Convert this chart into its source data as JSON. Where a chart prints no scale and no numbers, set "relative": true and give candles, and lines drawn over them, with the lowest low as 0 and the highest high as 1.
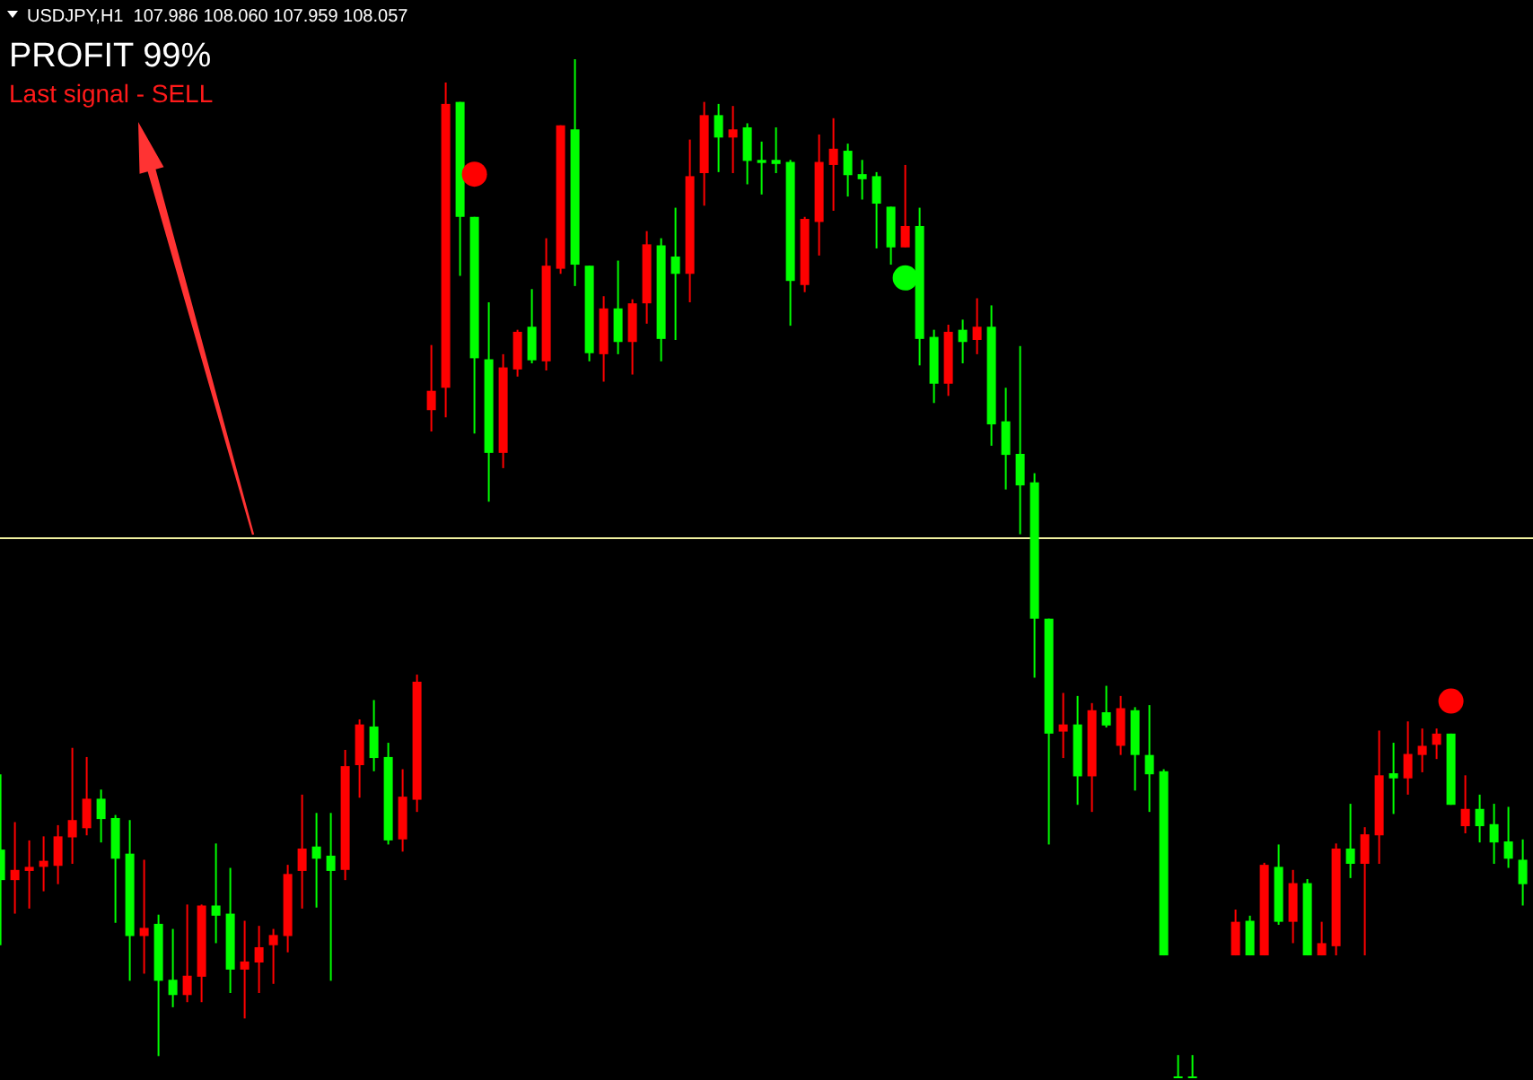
{
  "chart_data": {
    "type": "candlestick",
    "title": "USDJPY,H1  107.986 108.060 107.959 108.057",
    "annotations": [
      "PROFIT 99%",
      "Last signal - SELL"
    ],
    "relative": true,
    "categories": [
      null,
      null,
      null,
      null,
      null,
      null,
      null,
      null,
      null,
      null,
      null,
      null,
      null,
      null,
      null,
      null,
      null,
      null,
      null,
      null,
      null,
      null,
      null,
      null,
      null,
      null,
      null,
      null,
      null,
      null,
      null,
      null,
      null,
      null,
      null,
      null,
      null,
      null,
      null,
      null,
      null,
      null,
      null,
      null,
      null,
      null,
      null,
      null,
      null,
      null,
      null,
      null,
      null,
      null,
      null,
      null,
      null,
      null,
      null,
      null,
      null,
      null,
      null,
      null,
      null,
      null,
      null,
      null,
      null,
      null,
      null,
      null,
      null,
      null,
      null,
      null,
      null,
      null,
      null,
      null,
      null,
      null,
      null,
      null,
      null,
      null,
      null,
      null,
      null,
      null,
      null,
      null,
      null,
      null,
      null,
      null,
      null,
      null,
      null,
      null,
      null,
      null,
      null,
      null,
      null,
      null,
      null
    ],
    "ohlc": [
      [
        0.223,
        0.297,
        0.129,
        0.193
      ],
      [
        0.193,
        0.25,
        0.16,
        0.203
      ],
      [
        0.202,
        0.232,
        0.165,
        0.206
      ],
      [
        0.206,
        0.236,
        0.182,
        0.212
      ],
      [
        0.207,
        0.247,
        0.189,
        0.236
      ],
      [
        0.235,
        0.323,
        0.209,
        0.252
      ],
      [
        0.244,
        0.314,
        0.237,
        0.273
      ],
      [
        0.273,
        0.282,
        0.23,
        0.253
      ],
      [
        0.254,
        0.257,
        0.151,
        0.214
      ],
      [
        0.219,
        0.252,
        0.094,
        0.138
      ],
      [
        0.138,
        0.213,
        0.101,
        0.146
      ],
      [
        0.15,
        0.159,
        0.02,
        0.094
      ],
      [
        0.095,
        0.145,
        0.068,
        0.08
      ],
      [
        0.08,
        0.169,
        0.073,
        0.099
      ],
      [
        0.098,
        0.169,
        0.073,
        0.168
      ],
      [
        0.168,
        0.229,
        0.131,
        0.158
      ],
      [
        0.16,
        0.205,
        0.082,
        0.105
      ],
      [
        0.105,
        0.153,
        0.057,
        0.113
      ],
      [
        0.112,
        0.148,
        0.082,
        0.127
      ],
      [
        0.129,
        0.145,
        0.091,
        0.139
      ],
      [
        0.138,
        0.208,
        0.122,
        0.199
      ],
      [
        0.202,
        0.277,
        0.165,
        0.224
      ],
      [
        0.226,
        0.259,
        0.166,
        0.214
      ],
      [
        0.217,
        0.259,
        0.094,
        0.202
      ],
      [
        0.203,
        0.321,
        0.193,
        0.305
      ],
      [
        0.306,
        0.351,
        0.274,
        0.346
      ],
      [
        0.344,
        0.37,
        0.3,
        0.313
      ],
      [
        0.314,
        0.328,
        0.228,
        0.232
      ],
      [
        0.233,
        0.302,
        0.221,
        0.275
      ],
      [
        0.272,
        0.395,
        0.26,
        0.388
      ],
      [
        0.655,
        0.719,
        0.634,
        0.674
      ],
      [
        0.677,
        0.977,
        0.648,
        0.956
      ],
      [
        0.958,
        0.958,
        0.787,
        0.845
      ],
      [
        0.845,
        0.845,
        0.632,
        0.706
      ],
      [
        0.705,
        0.761,
        0.565,
        0.613
      ],
      [
        0.613,
        0.71,
        0.598,
        0.697
      ],
      [
        0.695,
        0.734,
        0.688,
        0.732
      ],
      [
        0.737,
        0.774,
        0.701,
        0.704
      ],
      [
        0.703,
        0.824,
        0.694,
        0.797
      ],
      [
        0.794,
        0.935,
        0.789,
        0.935
      ],
      [
        0.931,
        1.0,
        0.777,
        0.798
      ],
      [
        0.797,
        0.797,
        0.703,
        0.711
      ],
      [
        0.71,
        0.767,
        0.683,
        0.755
      ],
      [
        0.755,
        0.802,
        0.71,
        0.722
      ],
      [
        0.722,
        0.764,
        0.69,
        0.76
      ],
      [
        0.76,
        0.831,
        0.74,
        0.818
      ],
      [
        0.817,
        0.824,
        0.703,
        0.725
      ],
      [
        0.806,
        0.854,
        0.724,
        0.789
      ],
      [
        0.789,
        0.921,
        0.761,
        0.885
      ],
      [
        0.888,
        0.958,
        0.856,
        0.945
      ],
      [
        0.945,
        0.956,
        0.889,
        0.923
      ],
      [
        0.923,
        0.954,
        0.888,
        0.931
      ],
      [
        0.933,
        0.937,
        0.877,
        0.9
      ],
      [
        0.901,
        0.919,
        0.867,
        0.898
      ],
      [
        0.901,
        0.933,
        0.888,
        0.897
      ],
      [
        0.899,
        0.901,
        0.738,
        0.782
      ],
      [
        0.778,
        0.845,
        0.771,
        0.843
      ],
      [
        0.84,
        0.926,
        0.807,
        0.899
      ],
      [
        0.896,
        0.942,
        0.851,
        0.912
      ],
      [
        0.91,
        0.917,
        0.865,
        0.886
      ],
      [
        0.887,
        0.901,
        0.862,
        0.882
      ],
      [
        0.885,
        0.889,
        0.814,
        0.858
      ],
      [
        0.855,
        0.855,
        0.798,
        0.815
      ],
      [
        0.815,
        0.896,
        0.815,
        0.836
      ],
      [
        0.836,
        0.854,
        0.699,
        0.725
      ],
      [
        0.727,
        0.734,
        0.662,
        0.681
      ],
      [
        0.681,
        0.739,
        0.669,
        0.732
      ],
      [
        0.734,
        0.744,
        0.701,
        0.722
      ],
      [
        0.724,
        0.765,
        0.71,
        0.737
      ],
      [
        0.737,
        0.758,
        0.62,
        0.641
      ],
      [
        0.644,
        0.677,
        0.577,
        0.611
      ],
      [
        0.612,
        0.718,
        0.533,
        0.581
      ],
      [
        0.584,
        0.593,
        0.392,
        0.45
      ],
      [
        0.45,
        0.45,
        0.228,
        0.337
      ],
      [
        0.339,
        0.377,
        0.313,
        0.346
      ],
      [
        0.346,
        0.374,
        0.267,
        0.295
      ],
      [
        0.295,
        0.367,
        0.26,
        0.36
      ],
      [
        0.358,
        0.384,
        0.343,
        0.345
      ],
      [
        0.325,
        0.374,
        0.316,
        0.362
      ],
      [
        0.36,
        0.363,
        0.281,
        0.316
      ],
      [
        0.316,
        0.365,
        0.26,
        0.297
      ],
      [
        0.3,
        0.302,
        0.119,
        0.119
      ],
      [
        0,
        0.021,
        0,
        0
      ],
      [
        0,
        0.021,
        0,
        0
      ],
      null,
      null,
      [
        0.119,
        0.164,
        0.119,
        0.152
      ],
      [
        0.153,
        0.158,
        0.119,
        0.119
      ],
      [
        0.119,
        0.21,
        0.119,
        0.208
      ],
      [
        0.206,
        0.228,
        0.149,
        0.152
      ],
      [
        0.152,
        0.203,
        0.131,
        0.19
      ],
      [
        0.19,
        0.194,
        0.119,
        0.119
      ],
      [
        0.119,
        0.152,
        0.119,
        0.131
      ],
      [
        0.128,
        0.229,
        0.119,
        0.224
      ],
      [
        0.224,
        0.268,
        0.195,
        0.209
      ],
      [
        0.209,
        0.245,
        0.119,
        0.238
      ],
      [
        0.237,
        0.34,
        0.209,
        0.296
      ],
      [
        0.298,
        0.328,
        0.258,
        0.293
      ],
      [
        0.293,
        0.349,
        0.277,
        0.317
      ],
      [
        0.316,
        0.342,
        0.299,
        0.325
      ],
      [
        0.326,
        0.342,
        0.312,
        0.337
      ],
      [
        0.337,
        0.337,
        0.267,
        0.267
      ],
      [
        0.246,
        0.296,
        0.239,
        0.263
      ],
      [
        0.263,
        0.277,
        0.23,
        0.246
      ],
      [
        0.248,
        0.268,
        0.209,
        0.23
      ],
      [
        0.231,
        0.265,
        0.205,
        0.214
      ],
      [
        0.213,
        0.233,
        0.168,
        0.189
      ]
    ],
    "colors": [
      "#00ff00",
      "#ff0000",
      "#ff0000",
      "#ff0000",
      "#ff0000",
      "#ff0000",
      "#ff0000",
      "#00ff00",
      "#00ff00",
      "#00ff00",
      "#ff0000",
      "#00ff00",
      "#00ff00",
      "#ff0000",
      "#ff0000",
      "#00ff00",
      "#00ff00",
      "#ff0000",
      "#ff0000",
      "#ff0000",
      "#ff0000",
      "#ff0000",
      "#00ff00",
      "#00ff00",
      "#ff0000",
      "#ff0000",
      "#00ff00",
      "#00ff00",
      "#ff0000",
      "#ff0000",
      "#ff0000",
      "#ff0000",
      "#00ff00",
      "#00ff00",
      "#00ff00",
      "#ff0000",
      "#ff0000",
      "#00ff00",
      "#ff0000",
      "#ff0000",
      "#00ff00",
      "#00ff00",
      "#ff0000",
      "#00ff00",
      "#ff0000",
      "#ff0000",
      "#00ff00",
      "#00ff00",
      "#ff0000",
      "#ff0000",
      "#00ff00",
      "#ff0000",
      "#00ff00",
      "#00ff00",
      "#00ff00",
      "#00ff00",
      "#ff0000",
      "#ff0000",
      "#ff0000",
      "#00ff00",
      "#00ff00",
      "#00ff00",
      "#00ff00",
      "#ff0000",
      "#00ff00",
      "#00ff00",
      "#ff0000",
      "#00ff00",
      "#ff0000",
      "#00ff00",
      "#00ff00",
      "#00ff00",
      "#00ff00",
      "#00ff00",
      "#ff0000",
      "#00ff00",
      "#ff0000",
      "#00ff00",
      "#ff0000",
      "#00ff00",
      "#00ff00",
      "#00ff00",
      "#00ff00",
      "#00ff00",
      null,
      null,
      "#ff0000",
      "#00ff00",
      "#ff0000",
      "#00ff00",
      "#ff0000",
      "#00ff00",
      "#ff0000",
      "#ff0000",
      "#00ff00",
      "#ff0000",
      "#ff0000",
      "#00ff00",
      "#ff0000",
      "#ff0000",
      "#ff0000",
      "#00ff00",
      "#ff0000",
      "#00ff00",
      "#00ff00",
      "#00ff00",
      "#00ff00"
    ],
    "series": [
      {
        "type": "scatter",
        "color": "#ff0000",
        "marker": "circle",
        "values": [
          null,
          null,
          null,
          null,
          null,
          null,
          null,
          null,
          null,
          null,
          null,
          null,
          null,
          null,
          null,
          null,
          null,
          null,
          null,
          null,
          null,
          null,
          null,
          null,
          null,
          null,
          null,
          null,
          null,
          null,
          null,
          null,
          null,
          0.887,
          null,
          null,
          null,
          null,
          null,
          null,
          null,
          null,
          null,
          null,
          null,
          null,
          null,
          null,
          null,
          null,
          null,
          null,
          null,
          null,
          null,
          null,
          null,
          null,
          null,
          null,
          null,
          null,
          null,
          null,
          null,
          null,
          null,
          null,
          null,
          null,
          null,
          null,
          null,
          null,
          null,
          null,
          null,
          null,
          null,
          null,
          null,
          null,
          null,
          null,
          null,
          null,
          null,
          null,
          null,
          null,
          null,
          null,
          null,
          null,
          null,
          null,
          null,
          null,
          null,
          null,
          null,
          0.369,
          null,
          null,
          null,
          null,
          null
        ]
      },
      {
        "type": "scatter",
        "color": "#00ff00",
        "marker": "circle",
        "values": [
          null,
          null,
          null,
          null,
          null,
          null,
          null,
          null,
          null,
          null,
          null,
          null,
          null,
          null,
          null,
          null,
          null,
          null,
          null,
          null,
          null,
          null,
          null,
          null,
          null,
          null,
          null,
          null,
          null,
          null,
          null,
          null,
          null,
          null,
          null,
          null,
          null,
          null,
          null,
          null,
          null,
          null,
          null,
          null,
          null,
          null,
          null,
          null,
          null,
          null,
          null,
          null,
          null,
          null,
          null,
          null,
          null,
          null,
          null,
          null,
          null,
          null,
          null,
          0.785,
          null,
          null,
          null,
          null,
          null,
          null,
          null,
          null,
          null,
          null,
          null,
          null,
          null,
          null,
          null,
          null,
          null,
          null,
          null,
          null,
          null,
          null,
          null,
          null,
          null,
          null,
          null,
          null,
          null,
          null,
          null,
          null,
          null,
          null,
          null,
          null,
          null,
          null,
          null,
          null,
          null,
          null,
          null
        ]
      }
    ],
    "ref_lines": [
      {
        "axis": "y",
        "value": 0.529,
        "color": "#f0f0a0"
      }
    ]
  }
}
